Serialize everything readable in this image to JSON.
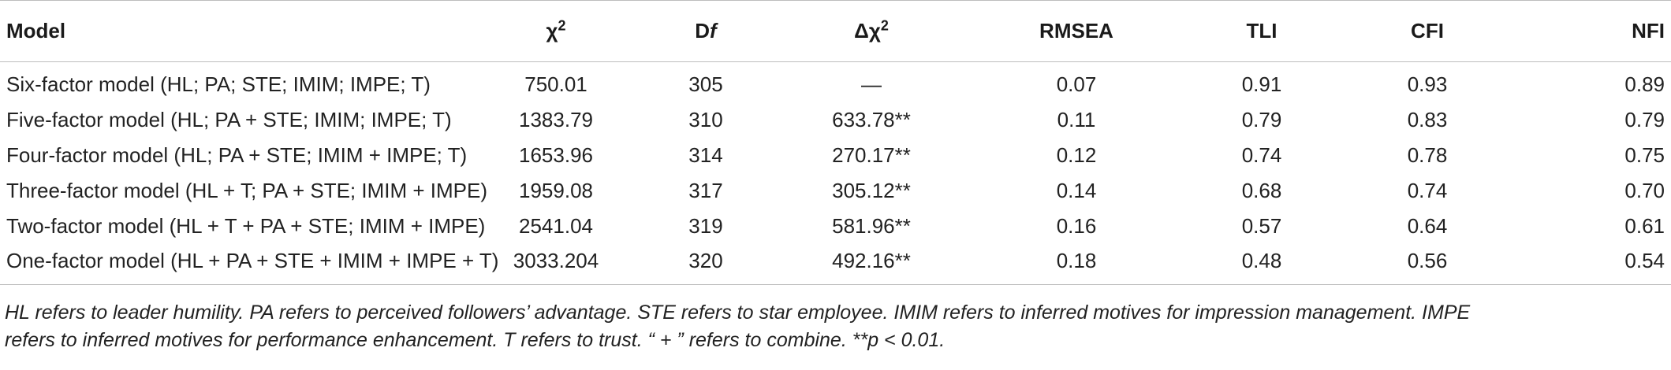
{
  "table": {
    "headers": {
      "model": "Model",
      "chi_base": "χ",
      "chi_sup": "2",
      "df_base": "D",
      "df_italic": "f",
      "dchi_base": "Δχ",
      "dchi_sup": "2",
      "rmsea": "RMSEA",
      "tli": "TLI",
      "cfi": "CFI",
      "nfi": "NFI"
    },
    "rows": [
      {
        "model": "Six-factor model (HL; PA; STE; IMIM; IMPE; T)",
        "chi": "750.01",
        "df": "305",
        "dchi": "—",
        "rmsea": "0.07",
        "tli": "0.91",
        "cfi": "0.93",
        "nfi": "0.89"
      },
      {
        "model": "Five-factor model (HL; PA + STE; IMIM; IMPE; T)",
        "chi": "1383.79",
        "df": "310",
        "dchi": "633.78**",
        "rmsea": "0.11",
        "tli": "0.79",
        "cfi": "0.83",
        "nfi": "0.79"
      },
      {
        "model": "Four-factor model (HL; PA + STE; IMIM + IMPE; T)",
        "chi": "1653.96",
        "df": "314",
        "dchi": "270.17**",
        "rmsea": "0.12",
        "tli": "0.74",
        "cfi": "0.78",
        "nfi": "0.75"
      },
      {
        "model": "Three-factor model (HL + T; PA + STE; IMIM + IMPE)",
        "chi": "1959.08",
        "df": "317",
        "dchi": "305.12**",
        "rmsea": "0.14",
        "tli": "0.68",
        "cfi": "0.74",
        "nfi": "0.70"
      },
      {
        "model": "Two-factor model (HL + T + PA + STE; IMIM + IMPE)",
        "chi": "2541.04",
        "df": "319",
        "dchi": "581.96**",
        "rmsea": "0.16",
        "tli": "0.57",
        "cfi": "0.64",
        "nfi": "0.61"
      },
      {
        "model": "One-factor model (HL + PA + STE + IMIM + IMPE + T)",
        "chi": "3033.204",
        "df": "320",
        "dchi": "492.16**",
        "rmsea": "0.18",
        "tli": "0.48",
        "cfi": "0.56",
        "nfi": "0.54"
      }
    ]
  },
  "note": {
    "line1": "HL refers to leader humility. PA refers to perceived followers’ advantage. STE refers to star employee. IMIM refers to inferred motives for impression management. IMPE",
    "line2": "refers to inferred motives for performance enhancement. T refers to trust. “ + ” refers to combine. **p < 0.01."
  }
}
